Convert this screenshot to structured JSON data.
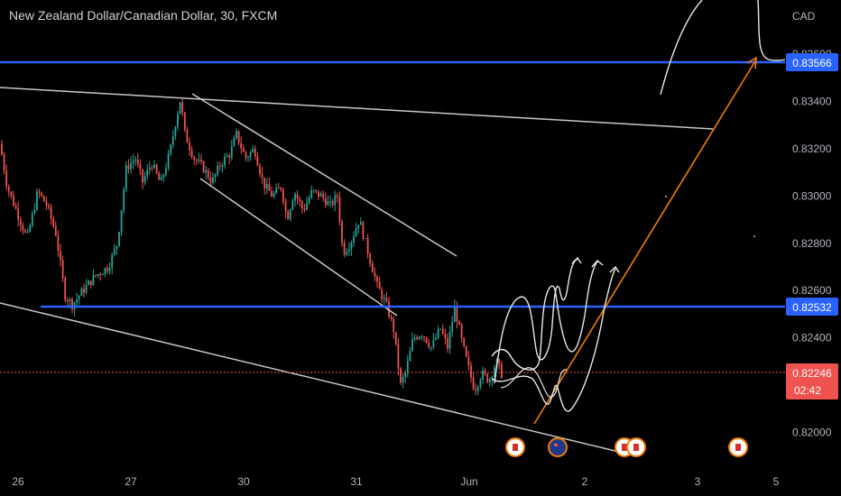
{
  "header": {
    "title": "New Zealand Dollar/Canadian Dollar, 30, FXCM"
  },
  "colors": {
    "background": "#000000",
    "up": "#26a69a",
    "down": "#ef5350",
    "horizontal_line": "#2962ff",
    "trendline": "#d1d4dc",
    "projection_arrow": "#f57c00",
    "current_price": "#ef5350",
    "marked_level": "#2962ff"
  },
  "chart_data": {
    "type": "candlestick",
    "symbol": "NZDCAD",
    "interval": "30",
    "currency_label": "CAD",
    "y_ticks": [
      "0.82000",
      "0.82200",
      "0.82400",
      "0.82600",
      "0.82800",
      "0.83000",
      "0.83200",
      "0.83400",
      "0.83600"
    ],
    "y_range": [
      0.8185,
      0.8375
    ],
    "x_ticks": [
      "26",
      "27",
      "30",
      "31",
      "Jun",
      "2",
      "3",
      "5"
    ],
    "x_tick_positions": [
      "26",
      "27",
      "30",
      "31",
      "Jun",
      "2",
      "3",
      "5"
    ],
    "marked_levels": [
      {
        "label": "0.83566",
        "value": 0.83566
      },
      {
        "label": "0.82532",
        "value": 0.82532
      }
    ],
    "current_price": {
      "label": "0.82246",
      "value": 0.82246,
      "countdown": "02:42"
    },
    "event_markers": [
      {
        "flag": "canada",
        "date": "Jun 1"
      },
      {
        "flag": "new-zealand",
        "date": "Jun 1"
      },
      {
        "flag": "canada",
        "date": "Jun 2"
      },
      {
        "flag": "canada",
        "date": "Jun 2"
      },
      {
        "flag": "canada",
        "date": "Jun 3"
      }
    ],
    "grid": false,
    "legend": "none"
  }
}
